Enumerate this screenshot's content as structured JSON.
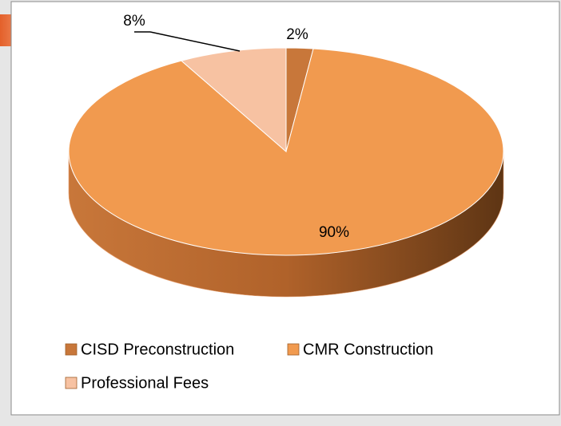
{
  "chart_data": {
    "type": "pie",
    "categories": [
      "CISD Preconstruction",
      "CMR Construction",
      "Professional Fees"
    ],
    "values": [
      2,
      90,
      8
    ],
    "value_labels": [
      "2%",
      "90%",
      "8%"
    ],
    "colors": [
      "#c8773a",
      "#f19a4f",
      "#f7c2a2"
    ]
  }
}
